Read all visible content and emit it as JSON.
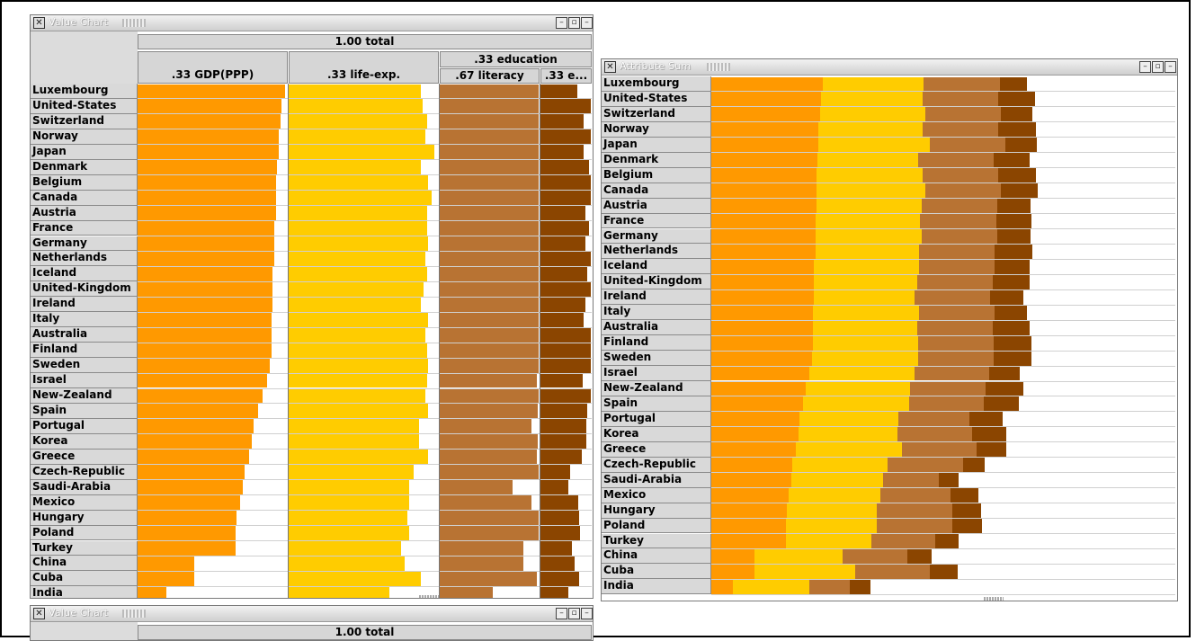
{
  "windows": {
    "value_chart_1": {
      "title": "Value Chart"
    },
    "attribute_sum": {
      "title": "Attribute Sum"
    },
    "value_chart_2": {
      "title": "Value Chart",
      "total_label": "1.00  total"
    }
  },
  "header": {
    "total_label": "1.00  total",
    "gdp_label": ".33  GDP(PPP)",
    "life_label": ".33  life-exp.",
    "education_label": ".33  education",
    "literacy_label": ".67  literacy",
    "enroll_label": ".33  e..."
  },
  "colors": {
    "gdp": "#ff9900",
    "life": "#ffcc00",
    "literacy": "#b87333",
    "enroll": "#8b4500"
  },
  "chart_data": [
    {
      "type": "bar",
      "title": "Value Chart",
      "categories": [
        "Luxembourg",
        "United-States",
        "Switzerland",
        "Norway",
        "Japan",
        "Denmark",
        "Belgium",
        "Canada",
        "Austria",
        "France",
        "Germany",
        "Netherlands",
        "Iceland",
        "United-Kingdom",
        "Ireland",
        "Italy",
        "Australia",
        "Finland",
        "Sweden",
        "Israel",
        "New-Zealand",
        "Spain",
        "Portugal",
        "Korea",
        "Greece",
        "Czech-Republic",
        "Saudi-Arabia",
        "Mexico",
        "Hungary",
        "Poland",
        "Turkey",
        "China",
        "Cuba",
        "India"
      ],
      "series": [
        {
          "name": "GDP(PPP)",
          "weight": 0.33,
          "values": [
            0.98,
            0.96,
            0.95,
            0.94,
            0.94,
            0.93,
            0.92,
            0.92,
            0.92,
            0.91,
            0.91,
            0.91,
            0.9,
            0.9,
            0.9,
            0.89,
            0.89,
            0.89,
            0.88,
            0.86,
            0.83,
            0.8,
            0.77,
            0.76,
            0.74,
            0.71,
            0.7,
            0.68,
            0.66,
            0.65,
            0.65,
            0.38,
            0.38,
            0.19
          ]
        },
        {
          "name": "life-exp.",
          "weight": 0.33,
          "values": [
            0.88,
            0.89,
            0.92,
            0.91,
            0.97,
            0.88,
            0.93,
            0.95,
            0.92,
            0.92,
            0.93,
            0.91,
            0.92,
            0.9,
            0.88,
            0.93,
            0.91,
            0.92,
            0.93,
            0.92,
            0.91,
            0.93,
            0.87,
            0.87,
            0.93,
            0.83,
            0.8,
            0.8,
            0.79,
            0.8,
            0.75,
            0.77,
            0.88,
            0.67
          ]
        },
        {
          "name": "literacy",
          "weight": 0.67,
          "values": [
            0.99,
            0.99,
            0.99,
            0.99,
            0.99,
            0.99,
            0.99,
            0.99,
            0.99,
            0.99,
            0.99,
            0.99,
            0.99,
            0.99,
            0.99,
            0.99,
            0.99,
            0.99,
            0.99,
            0.97,
            0.99,
            0.98,
            0.92,
            0.98,
            0.97,
            0.99,
            0.73,
            0.92,
            0.99,
            0.99,
            0.84,
            0.84,
            0.97,
            0.53
          ]
        },
        {
          "name": "education enrollment",
          "weight": 0.33,
          "values": [
            0.72,
            0.98,
            0.85,
            0.99,
            0.85,
            0.95,
            0.99,
            0.99,
            0.88,
            0.94,
            0.88,
            0.99,
            0.92,
            0.99,
            0.88,
            0.84,
            0.99,
            0.99,
            0.99,
            0.82,
            0.99,
            0.92,
            0.9,
            0.9,
            0.8,
            0.58,
            0.54,
            0.73,
            0.76,
            0.77,
            0.62,
            0.66,
            0.76,
            0.55
          ]
        }
      ]
    },
    {
      "type": "bar",
      "title": "Attribute Sum",
      "stacked": true,
      "categories": [
        "Luxembourg",
        "United-States",
        "Switzerland",
        "Norway",
        "Japan",
        "Denmark",
        "Belgium",
        "Canada",
        "Austria",
        "France",
        "Germany",
        "Netherlands",
        "Iceland",
        "United-Kingdom",
        "Ireland",
        "Italy",
        "Australia",
        "Finland",
        "Sweden",
        "Israel",
        "New-Zealand",
        "Spain",
        "Portugal",
        "Korea",
        "Greece",
        "Czech-Republic",
        "Saudi-Arabia",
        "Mexico",
        "Hungary",
        "Poland",
        "Turkey",
        "China",
        "Cuba",
        "India"
      ],
      "series_ref": "same as Value Chart, stacked by weight"
    }
  ]
}
